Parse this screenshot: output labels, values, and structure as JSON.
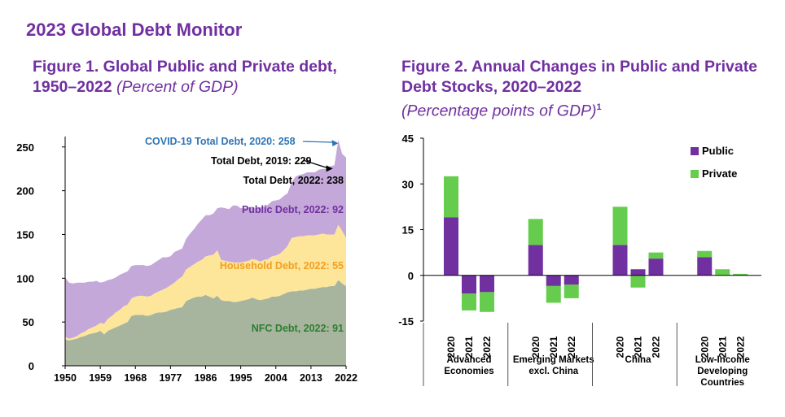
{
  "page_title": "2023 Global Debt Monitor",
  "fig1": {
    "title_main": "Figure 1. Global Public and Private debt, 1950–2022",
    "title_unit": "(Percent of GDP)"
  },
  "fig2": {
    "title_main": "Figure 2. Annual Changes in Public and Private Debt Stocks, 2020–2022",
    "title_unit": "(Percentage points of GDP)",
    "title_note": "1"
  },
  "chart_data": [
    {
      "type": "area",
      "stacked": true,
      "x": [
        1950,
        1951,
        1952,
        1953,
        1954,
        1955,
        1956,
        1957,
        1958,
        1959,
        1960,
        1961,
        1962,
        1963,
        1964,
        1965,
        1966,
        1967,
        1968,
        1969,
        1970,
        1971,
        1972,
        1973,
        1974,
        1975,
        1976,
        1977,
        1978,
        1979,
        1980,
        1981,
        1982,
        1983,
        1984,
        1985,
        1986,
        1987,
        1988,
        1989,
        1990,
        1991,
        1992,
        1993,
        1994,
        1995,
        1996,
        1997,
        1998,
        1999,
        2000,
        2001,
        2002,
        2003,
        2004,
        2005,
        2006,
        2007,
        2008,
        2009,
        2010,
        2011,
        2012,
        2013,
        2014,
        2015,
        2016,
        2017,
        2018,
        2019,
        2020,
        2021,
        2022
      ],
      "series": [
        {
          "name": "NFC Debt",
          "color": "#a8b59e",
          "values": [
            30,
            29,
            30,
            31,
            33,
            34,
            36,
            37,
            38,
            40,
            36,
            40,
            42,
            44,
            46,
            48,
            50,
            57,
            58,
            58,
            58,
            57,
            58,
            60,
            61,
            61,
            62,
            64,
            65,
            66,
            67,
            74,
            76,
            78,
            79,
            79,
            81,
            79,
            77,
            80,
            75,
            74,
            74,
            73,
            73,
            74,
            75,
            76,
            78,
            76,
            75,
            76,
            77,
            79,
            79,
            80,
            82,
            84,
            85,
            85,
            86,
            86,
            87,
            88,
            88,
            89,
            90,
            90,
            91,
            91,
            98,
            94,
            91
          ]
        },
        {
          "name": "Household Debt",
          "color": "#fde59a",
          "values": [
            3,
            2,
            2,
            3,
            4,
            5,
            6,
            7,
            8,
            9,
            12,
            14,
            15,
            17,
            18,
            20,
            20,
            20,
            21,
            22,
            22,
            22,
            22,
            23,
            24,
            26,
            27,
            28,
            30,
            33,
            35,
            36,
            37,
            38,
            40,
            42,
            44,
            47,
            50,
            52,
            46,
            46,
            45,
            45,
            45,
            44,
            44,
            44,
            44,
            45,
            44,
            45,
            45,
            46,
            47,
            48,
            50,
            53,
            61,
            62,
            62,
            62,
            62,
            61,
            61,
            61,
            61,
            60,
            59,
            59,
            63,
            60,
            55
          ]
        },
        {
          "name": "Public Debt",
          "color": "#c4a8d9",
          "values": [
            68,
            64,
            62,
            61,
            58,
            56,
            54,
            52,
            51,
            46,
            48,
            44,
            42,
            40,
            40,
            38,
            38,
            37,
            36,
            35,
            35,
            35,
            35,
            35,
            36,
            37,
            35,
            33,
            35,
            33,
            32,
            35,
            38,
            40,
            43,
            46,
            47,
            46,
            47,
            48,
            60,
            60,
            60,
            65,
            65,
            62,
            61,
            61,
            60,
            58,
            62,
            61,
            62,
            63,
            63,
            62,
            62,
            60,
            63,
            69,
            70,
            71,
            72,
            72,
            72,
            74,
            74,
            75,
            78,
            79,
            97,
            88,
            92
          ]
        }
      ],
      "ylim": [
        0,
        260
      ],
      "yticks": [
        0,
        50,
        100,
        150,
        200,
        250
      ],
      "xticks": [
        "1950",
        "1959",
        "1968",
        "1977",
        "1986",
        "1995",
        "2004",
        "2013",
        "2022"
      ],
      "annotations": [
        {
          "text": "COVID-19 Total Debt, 2020: 258",
          "color": "#2e75b6"
        },
        {
          "text": "Total Debt, 2019: 229",
          "color": "#000000"
        },
        {
          "text": "Total Debt, 2022: 238",
          "color": "#000000"
        },
        {
          "text": "Public Debt, 2022: 92",
          "color": "#7030a0"
        },
        {
          "text": "Household Debt, 2022: 55",
          "color": "#f4a020"
        },
        {
          "text": "NFC Debt, 2022: 91",
          "color": "#2e7d32"
        }
      ]
    },
    {
      "type": "bar",
      "stacked": true,
      "groups": [
        "Advanced Economies",
        "Emerging Markets excl. China",
        "China",
        "Low-Income Developing Countries"
      ],
      "group_label_lines": [
        [
          "Advanced",
          "Economies"
        ],
        [
          "Emerging Markets",
          "excl. China"
        ],
        [
          "China"
        ],
        [
          "Low-Income",
          "Developing",
          "Countries"
        ]
      ],
      "categories": [
        "2020",
        "2021",
        "2022"
      ],
      "series": [
        {
          "name": "Public",
          "color": "#7030a0",
          "values": [
            [
              19,
              -6,
              -5.5
            ],
            [
              10,
              -3.5,
              -3
            ],
            [
              10,
              2,
              5.5
            ],
            [
              6,
              0,
              0
            ]
          ]
        },
        {
          "name": "Private",
          "color": "#66cc4d",
          "values": [
            [
              13.5,
              -5.5,
              -6.5
            ],
            [
              8.5,
              -5.5,
              -4.5
            ],
            [
              12.5,
              -4,
              2
            ],
            [
              2,
              2,
              0.5
            ]
          ]
        }
      ],
      "ylim": [
        -15,
        45
      ],
      "yticks": [
        -15,
        0,
        15,
        30,
        45
      ],
      "legend_position": "top-right"
    }
  ]
}
